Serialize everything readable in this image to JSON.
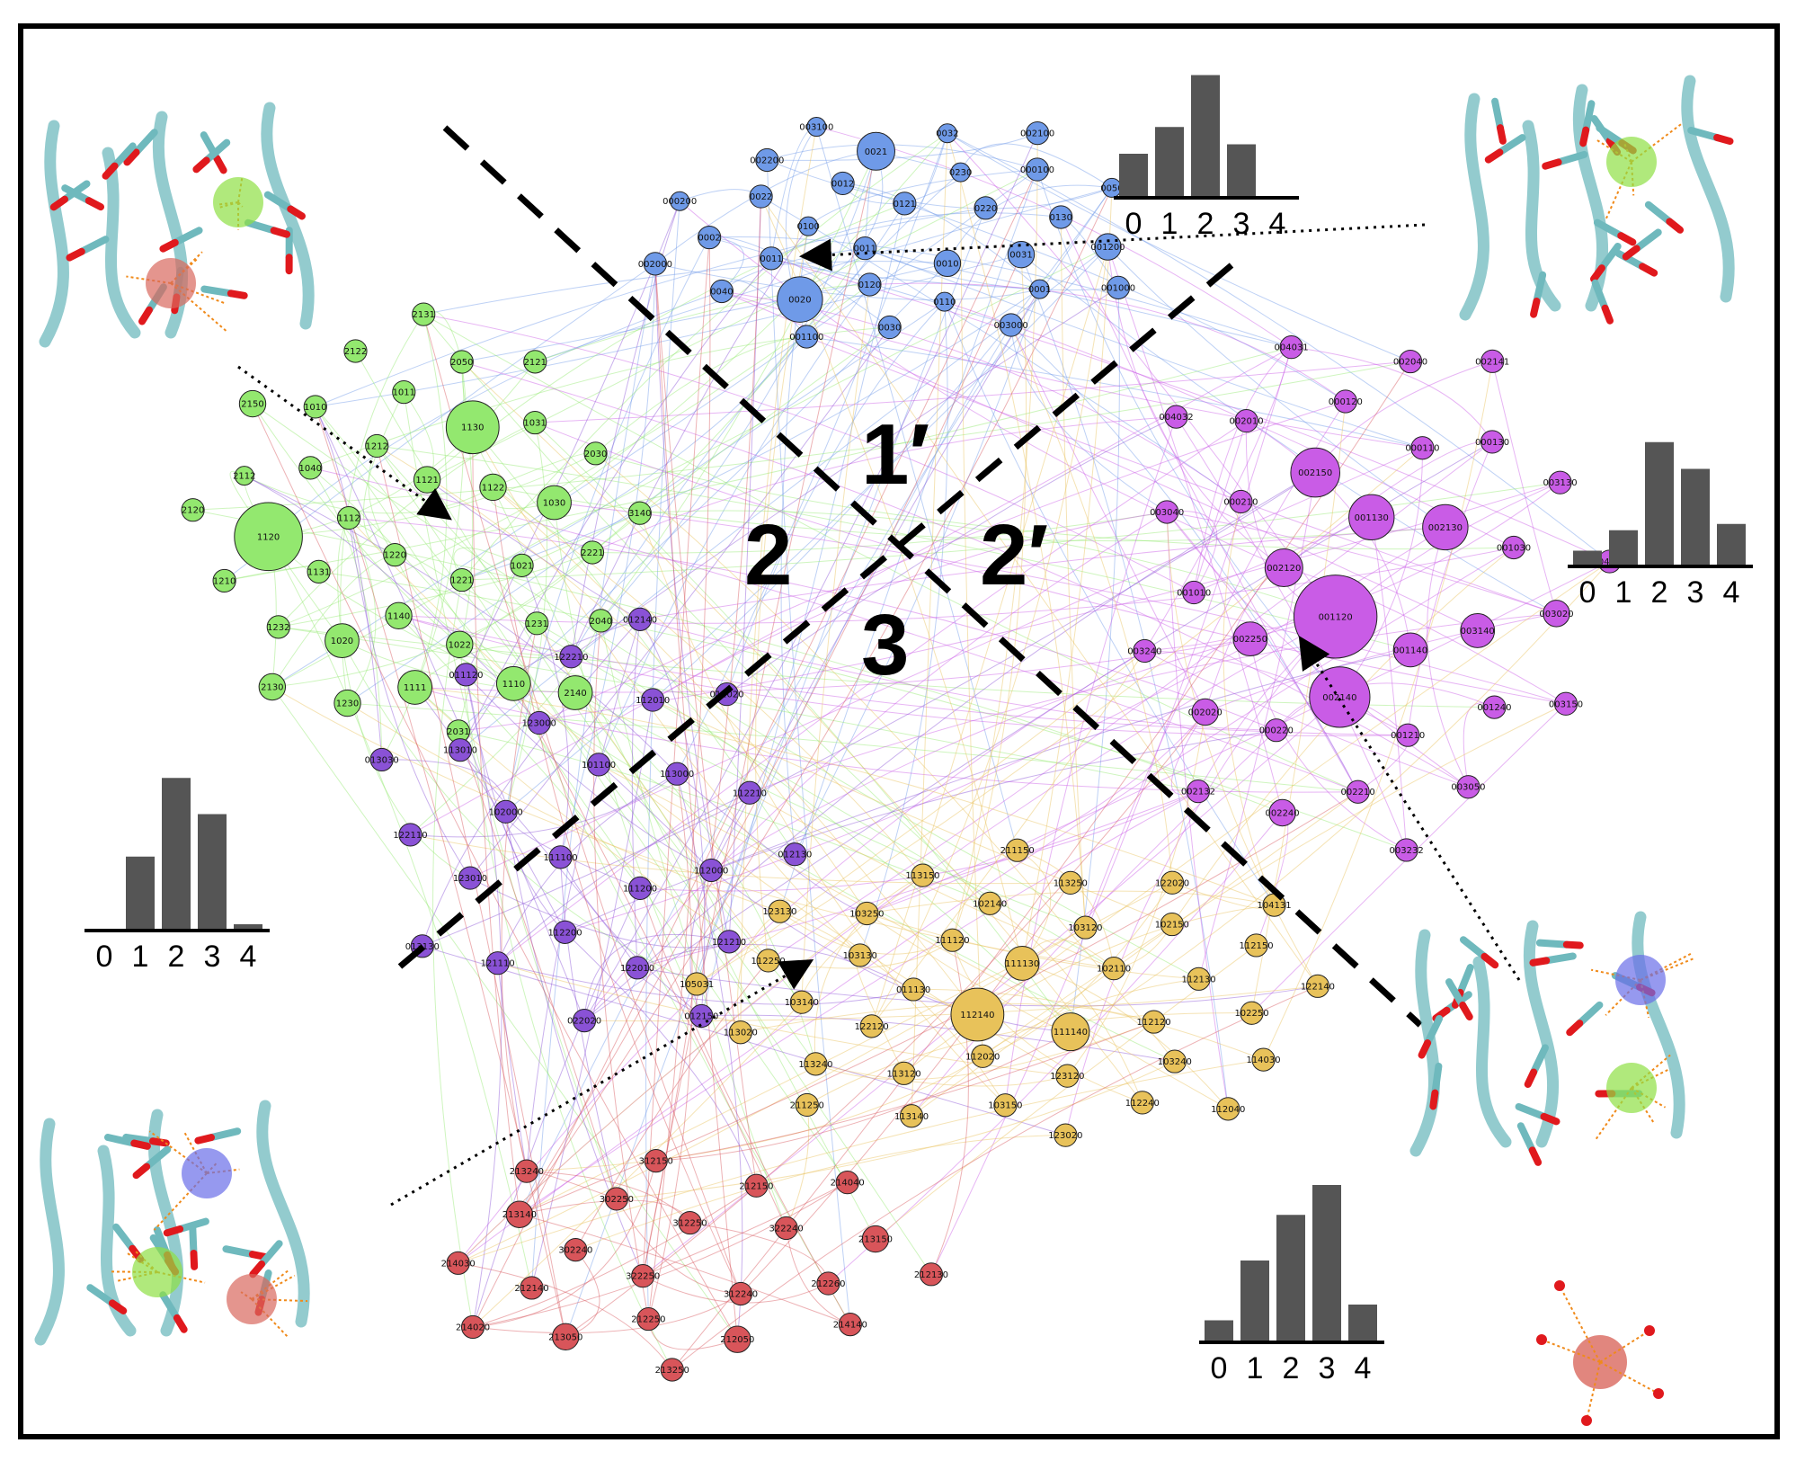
{
  "colors": {
    "blue": "#6f9ae8",
    "green": "#93e86f",
    "purple": "#8a52d6",
    "magenta": "#c95ce6",
    "yellow": "#e8c25a",
    "red": "#d8555a",
    "bar": "#555555",
    "carbon": "#6fb9bd",
    "oxygen": "#e0191d"
  },
  "regions": [
    {
      "id": "r1p",
      "label": "1′"
    },
    {
      "id": "r2",
      "label": "2"
    },
    {
      "id": "r2p",
      "label": "2′"
    },
    {
      "id": "r3",
      "label": "3"
    }
  ],
  "histograms": [
    {
      "id": "hist-top",
      "ticks": [
        "0",
        "1",
        "2",
        "3",
        "4"
      ],
      "values": [
        0.28,
        0.45,
        0.78,
        0.34,
        0
      ]
    },
    {
      "id": "hist-right",
      "ticks": [
        "0",
        "1",
        "2",
        "3",
        "4"
      ],
      "values": [
        0.1,
        0.23,
        0.79,
        0.62,
        0.27
      ]
    },
    {
      "id": "hist-left",
      "ticks": [
        "0",
        "1",
        "2",
        "3",
        "4"
      ],
      "values": [
        0,
        0.47,
        0.97,
        0.74,
        0.04
      ]
    },
    {
      "id": "hist-bottom",
      "ticks": [
        "0",
        "1",
        "2",
        "3",
        "4"
      ],
      "values": [
        0.14,
        0.52,
        0.81,
        1.0,
        0.24
      ]
    }
  ],
  "nodes": [
    {
      "label": "0011",
      "group": "blue",
      "size": 6
    },
    {
      "label": "0121",
      "group": "blue",
      "size": 6
    },
    {
      "label": "0010",
      "group": "blue",
      "size": 7
    },
    {
      "label": "0100",
      "group": "blue",
      "size": 5
    },
    {
      "label": "0220",
      "group": "blue",
      "size": 6
    },
    {
      "label": "0120",
      "group": "blue",
      "size": 6
    },
    {
      "label": "0012",
      "group": "blue",
      "size": 6
    },
    {
      "label": "0031",
      "group": "blue",
      "size": 7
    },
    {
      "label": "0011",
      "group": "blue",
      "size": 6
    },
    {
      "label": "0230",
      "group": "blue",
      "size": 5
    },
    {
      "label": "0110",
      "group": "blue",
      "size": 5
    },
    {
      "label": "0022",
      "group": "blue",
      "size": 6
    },
    {
      "label": "0130",
      "group": "blue",
      "size": 6
    },
    {
      "label": "0020",
      "group": "blue",
      "size": 12
    },
    {
      "label": "0021",
      "group": "blue",
      "size": 10
    },
    {
      "label": "0001",
      "group": "blue",
      "size": 5
    },
    {
      "label": "0002",
      "group": "blue",
      "size": 6
    },
    {
      "label": "000100",
      "group": "blue",
      "size": 6
    },
    {
      "label": "0030",
      "group": "blue",
      "size": 6
    },
    {
      "label": "002200",
      "group": "blue",
      "size": 6
    },
    {
      "label": "001200",
      "group": "blue",
      "size": 7
    },
    {
      "label": "0040",
      "group": "blue",
      "size": 6
    },
    {
      "label": "0032",
      "group": "blue",
      "size": 5
    },
    {
      "label": "003000",
      "group": "blue",
      "size": 6
    },
    {
      "label": "000200",
      "group": "blue",
      "size": 5
    },
    {
      "label": "0050",
      "group": "blue",
      "size": 5
    },
    {
      "label": "001100",
      "group": "blue",
      "size": 6
    },
    {
      "label": "003100",
      "group": "blue",
      "size": 5
    },
    {
      "label": "001000",
      "group": "blue",
      "size": 6
    },
    {
      "label": "002000",
      "group": "blue",
      "size": 6
    },
    {
      "label": "002100",
      "group": "blue",
      "size": 6
    },
    {
      "label": "1220",
      "group": "green",
      "size": 6
    },
    {
      "label": "1121",
      "group": "green",
      "size": 7
    },
    {
      "label": "1221",
      "group": "green",
      "size": 6
    },
    {
      "label": "1112",
      "group": "green",
      "size": 6
    },
    {
      "label": "1122",
      "group": "green",
      "size": 7
    },
    {
      "label": "1140",
      "group": "green",
      "size": 7
    },
    {
      "label": "1212",
      "group": "green",
      "size": 6
    },
    {
      "label": "1021",
      "group": "green",
      "size": 6
    },
    {
      "label": "1131",
      "group": "green",
      "size": 6
    },
    {
      "label": "1130",
      "group": "green",
      "size": 14
    },
    {
      "label": "1022",
      "group": "green",
      "size": 7
    },
    {
      "label": "1040",
      "group": "green",
      "size": 6
    },
    {
      "label": "1030",
      "group": "green",
      "size": 9
    },
    {
      "label": "1020",
      "group": "green",
      "size": 9
    },
    {
      "label": "1011",
      "group": "green",
      "size": 6
    },
    {
      "label": "1231",
      "group": "green",
      "size": 6
    },
    {
      "label": "1120",
      "group": "green",
      "size": 18
    },
    {
      "label": "1031",
      "group": "green",
      "size": 6
    },
    {
      "label": "1111",
      "group": "green",
      "size": 9
    },
    {
      "label": "1010",
      "group": "green",
      "size": 6
    },
    {
      "label": "2221",
      "group": "green",
      "size": 6
    },
    {
      "label": "1232",
      "group": "green",
      "size": 6
    },
    {
      "label": "2050",
      "group": "green",
      "size": 6
    },
    {
      "label": "1110",
      "group": "green",
      "size": 9
    },
    {
      "label": "2112",
      "group": "green",
      "size": 5
    },
    {
      "label": "2030",
      "group": "green",
      "size": 6
    },
    {
      "label": "1230",
      "group": "green",
      "size": 7
    },
    {
      "label": "2122",
      "group": "green",
      "size": 6
    },
    {
      "label": "2040",
      "group": "green",
      "size": 6
    },
    {
      "label": "1210",
      "group": "green",
      "size": 6
    },
    {
      "label": "2121",
      "group": "green",
      "size": 6
    },
    {
      "label": "2031",
      "group": "green",
      "size": 6
    },
    {
      "label": "2150",
      "group": "green",
      "size": 7
    },
    {
      "label": "3140",
      "group": "green",
      "size": 6
    },
    {
      "label": "2130",
      "group": "green",
      "size": 7
    },
    {
      "label": "2131",
      "group": "green",
      "size": 6
    },
    {
      "label": "2140",
      "group": "green",
      "size": 9
    },
    {
      "label": "2120",
      "group": "green",
      "size": 6
    },
    {
      "label": "001120",
      "group": "magenta",
      "size": 22
    },
    {
      "label": "001130",
      "group": "magenta",
      "size": 12
    },
    {
      "label": "001140",
      "group": "magenta",
      "size": 9
    },
    {
      "label": "002120",
      "group": "magenta",
      "size": 10
    },
    {
      "label": "002130",
      "group": "magenta",
      "size": 12
    },
    {
      "label": "002140",
      "group": "magenta",
      "size": 16
    },
    {
      "label": "002150",
      "group": "magenta",
      "size": 13
    },
    {
      "label": "003140",
      "group": "magenta",
      "size": 9
    },
    {
      "label": "002250",
      "group": "magenta",
      "size": 9
    },
    {
      "label": "000110",
      "group": "magenta",
      "size": 6
    },
    {
      "label": "001210",
      "group": "magenta",
      "size": 6
    },
    {
      "label": "000210",
      "group": "magenta",
      "size": 6
    },
    {
      "label": "001030",
      "group": "magenta",
      "size": 6
    },
    {
      "label": "000220",
      "group": "magenta",
      "size": 6
    },
    {
      "label": "000120",
      "group": "magenta",
      "size": 6
    },
    {
      "label": "001240",
      "group": "magenta",
      "size": 6
    },
    {
      "label": "001010",
      "group": "magenta",
      "size": 6
    },
    {
      "label": "000130",
      "group": "magenta",
      "size": 6
    },
    {
      "label": "002210",
      "group": "magenta",
      "size": 6
    },
    {
      "label": "002010",
      "group": "magenta",
      "size": 6
    },
    {
      "label": "003020",
      "group": "magenta",
      "size": 7
    },
    {
      "label": "002020",
      "group": "magenta",
      "size": 7
    },
    {
      "label": "002040",
      "group": "magenta",
      "size": 6
    },
    {
      "label": "003050",
      "group": "magenta",
      "size": 6
    },
    {
      "label": "003040",
      "group": "magenta",
      "size": 6
    },
    {
      "label": "003130",
      "group": "magenta",
      "size": 6
    },
    {
      "label": "002240",
      "group": "magenta",
      "size": 7
    },
    {
      "label": "004031",
      "group": "magenta",
      "size": 6
    },
    {
      "label": "003150",
      "group": "magenta",
      "size": 6
    },
    {
      "label": "003240",
      "group": "magenta",
      "size": 6
    },
    {
      "label": "002141",
      "group": "magenta",
      "size": 6
    },
    {
      "label": "003232",
      "group": "magenta",
      "size": 6
    },
    {
      "label": "004032",
      "group": "magenta",
      "size": 6
    },
    {
      "label": "004132",
      "group": "magenta",
      "size": 6
    },
    {
      "label": "002132",
      "group": "magenta",
      "size": 6
    },
    {
      "label": "111100",
      "group": "purple",
      "size": 6
    },
    {
      "label": "101100",
      "group": "purple",
      "size": 6
    },
    {
      "label": "111200",
      "group": "purple",
      "size": 6
    },
    {
      "label": "102000",
      "group": "purple",
      "size": 6
    },
    {
      "label": "113000",
      "group": "purple",
      "size": 6
    },
    {
      "label": "112200",
      "group": "purple",
      "size": 6
    },
    {
      "label": "123000",
      "group": "purple",
      "size": 6
    },
    {
      "label": "112000",
      "group": "purple",
      "size": 6
    },
    {
      "label": "123010",
      "group": "purple",
      "size": 6
    },
    {
      "label": "112010",
      "group": "purple",
      "size": 6
    },
    {
      "label": "122010",
      "group": "purple",
      "size": 6
    },
    {
      "label": "113010",
      "group": "purple",
      "size": 6
    },
    {
      "label": "112210",
      "group": "purple",
      "size": 6
    },
    {
      "label": "121110",
      "group": "purple",
      "size": 6
    },
    {
      "label": "122210",
      "group": "purple",
      "size": 6
    },
    {
      "label": "121210",
      "group": "purple",
      "size": 6
    },
    {
      "label": "122110",
      "group": "purple",
      "size": 6
    },
    {
      "label": "012020",
      "group": "purple",
      "size": 6
    },
    {
      "label": "022020",
      "group": "purple",
      "size": 6
    },
    {
      "label": "011120",
      "group": "purple",
      "size": 6
    },
    {
      "label": "012130",
      "group": "purple",
      "size": 6
    },
    {
      "label": "013130",
      "group": "purple",
      "size": 6
    },
    {
      "label": "012140",
      "group": "purple",
      "size": 6
    },
    {
      "label": "012150",
      "group": "purple",
      "size": 6
    },
    {
      "label": "013030",
      "group": "purple",
      "size": 6
    },
    {
      "label": "112140",
      "group": "yellow",
      "size": 14
    },
    {
      "label": "111130",
      "group": "yellow",
      "size": 9
    },
    {
      "label": "111140",
      "group": "yellow",
      "size": 10
    },
    {
      "label": "011130",
      "group": "yellow",
      "size": 6
    },
    {
      "label": "102110",
      "group": "yellow",
      "size": 6
    },
    {
      "label": "112020",
      "group": "yellow",
      "size": 6
    },
    {
      "label": "111120",
      "group": "yellow",
      "size": 6
    },
    {
      "label": "112120",
      "group": "yellow",
      "size": 6
    },
    {
      "label": "122120",
      "group": "yellow",
      "size": 6
    },
    {
      "label": "103120",
      "group": "yellow",
      "size": 6
    },
    {
      "label": "123120",
      "group": "yellow",
      "size": 6
    },
    {
      "label": "103130",
      "group": "yellow",
      "size": 6
    },
    {
      "label": "112130",
      "group": "yellow",
      "size": 6
    },
    {
      "label": "113120",
      "group": "yellow",
      "size": 6
    },
    {
      "label": "102140",
      "group": "yellow",
      "size": 6
    },
    {
      "label": "103240",
      "group": "yellow",
      "size": 6
    },
    {
      "label": "103140",
      "group": "yellow",
      "size": 6
    },
    {
      "label": "102150",
      "group": "yellow",
      "size": 6
    },
    {
      "label": "103150",
      "group": "yellow",
      "size": 6
    },
    {
      "label": "103250",
      "group": "yellow",
      "size": 6
    },
    {
      "label": "102250",
      "group": "yellow",
      "size": 6
    },
    {
      "label": "113240",
      "group": "yellow",
      "size": 6
    },
    {
      "label": "113250",
      "group": "yellow",
      "size": 6
    },
    {
      "label": "112240",
      "group": "yellow",
      "size": 6
    },
    {
      "label": "112250",
      "group": "yellow",
      "size": 6
    },
    {
      "label": "112150",
      "group": "yellow",
      "size": 6
    },
    {
      "label": "113140",
      "group": "yellow",
      "size": 6
    },
    {
      "label": "113150",
      "group": "yellow",
      "size": 6
    },
    {
      "label": "114030",
      "group": "yellow",
      "size": 6
    },
    {
      "label": "113020",
      "group": "yellow",
      "size": 6
    },
    {
      "label": "122020",
      "group": "yellow",
      "size": 6
    },
    {
      "label": "123020",
      "group": "yellow",
      "size": 6
    },
    {
      "label": "123130",
      "group": "yellow",
      "size": 6
    },
    {
      "label": "122140",
      "group": "yellow",
      "size": 6
    },
    {
      "label": "211250",
      "group": "yellow",
      "size": 6
    },
    {
      "label": "211150",
      "group": "yellow",
      "size": 6
    },
    {
      "label": "112040",
      "group": "yellow",
      "size": 6
    },
    {
      "label": "105031",
      "group": "yellow",
      "size": 6
    },
    {
      "label": "104131",
      "group": "yellow",
      "size": 6
    },
    {
      "label": "322250",
      "group": "red",
      "size": 6
    },
    {
      "label": "312250",
      "group": "red",
      "size": 6
    },
    {
      "label": "312240",
      "group": "red",
      "size": 6
    },
    {
      "label": "302240",
      "group": "red",
      "size": 6
    },
    {
      "label": "322240",
      "group": "red",
      "size": 6
    },
    {
      "label": "212250",
      "group": "red",
      "size": 6
    },
    {
      "label": "302250",
      "group": "red",
      "size": 6
    },
    {
      "label": "212260",
      "group": "red",
      "size": 6
    },
    {
      "label": "212140",
      "group": "red",
      "size": 6
    },
    {
      "label": "212150",
      "group": "red",
      "size": 6
    },
    {
      "label": "212050",
      "group": "red",
      "size": 7
    },
    {
      "label": "213140",
      "group": "red",
      "size": 7
    },
    {
      "label": "213150",
      "group": "red",
      "size": 7
    },
    {
      "label": "213050",
      "group": "red",
      "size": 7
    },
    {
      "label": "312150",
      "group": "red",
      "size": 6
    },
    {
      "label": "214140",
      "group": "red",
      "size": 6
    },
    {
      "label": "214030",
      "group": "red",
      "size": 6
    },
    {
      "label": "214040",
      "group": "red",
      "size": 6
    },
    {
      "label": "213250",
      "group": "red",
      "size": 6
    },
    {
      "label": "213240",
      "group": "red",
      "size": 6
    },
    {
      "label": "212130",
      "group": "red",
      "size": 6
    },
    {
      "label": "214020",
      "group": "red",
      "size": 6
    }
  ]
}
